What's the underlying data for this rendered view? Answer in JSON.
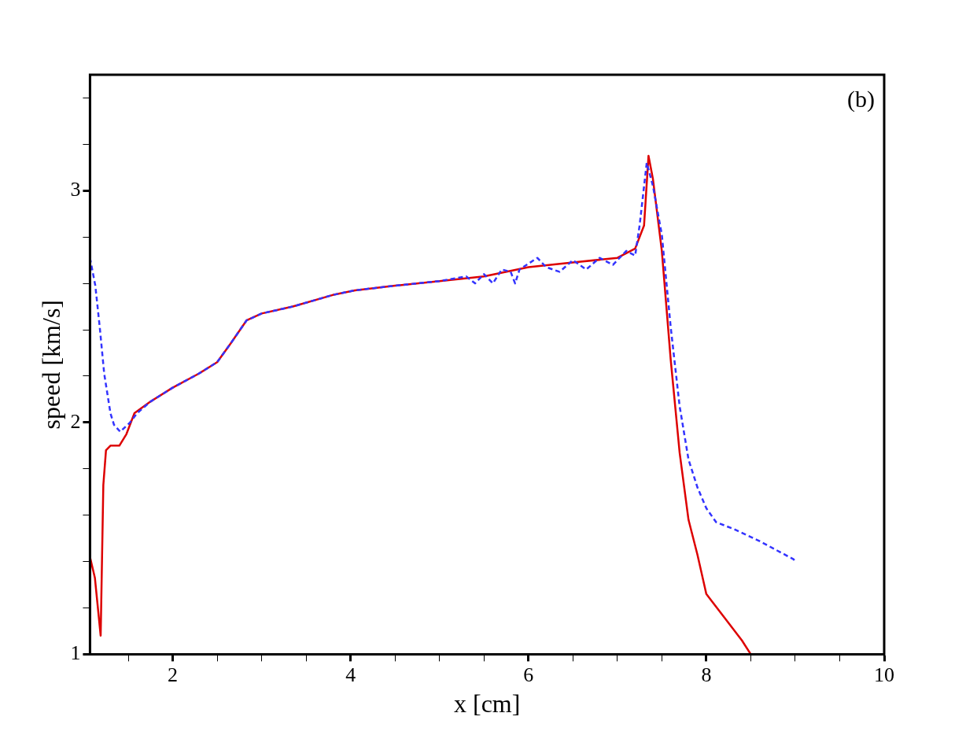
{
  "chart_data": {
    "type": "line",
    "xlabel": "x [cm]",
    "ylabel": "speed [km/s]",
    "annotations": [
      "(b)"
    ],
    "xlim": [
      1.07,
      10
    ],
    "ylim": [
      1,
      3.5
    ],
    "xticks": [
      {
        "value": 1.5,
        "label": null
      },
      2,
      {
        "value": 2.5,
        "label": null
      },
      {
        "value": 3,
        "label": null
      },
      {
        "value": 3.5,
        "label": null
      },
      4,
      {
        "value": 4.5,
        "label": null
      },
      {
        "value": 5,
        "label": null
      },
      {
        "value": 5.5,
        "label": null
      },
      6,
      {
        "value": 6.5,
        "label": null
      },
      {
        "value": 7,
        "label": null
      },
      {
        "value": 7.5,
        "label": null
      },
      8,
      {
        "value": 8.5,
        "label": null
      },
      {
        "value": 9,
        "label": null
      },
      {
        "value": 9.5,
        "label": null
      },
      10
    ],
    "yticks": [
      1,
      {
        "value": 1.2,
        "label": null
      },
      {
        "value": 1.4,
        "label": null
      },
      {
        "value": 1.6,
        "label": null
      },
      {
        "value": 1.8,
        "label": null
      },
      2,
      {
        "value": 2.2,
        "label": null
      },
      {
        "value": 2.4,
        "label": null
      },
      {
        "value": 2.6,
        "label": null
      },
      {
        "value": 2.8,
        "label": null
      },
      3,
      {
        "value": 3.2,
        "label": null
      },
      {
        "value": 3.4,
        "label": null
      }
    ],
    "grid": false,
    "legend": false,
    "marker": "none",
    "series": [
      {
        "color": "#3333ff",
        "line_style": "dashed",
        "x": [
          1.07,
          1.13,
          1.18,
          1.23,
          1.3,
          1.34,
          1.41,
          1.52,
          1.6,
          1.75,
          2,
          2.29,
          2.5,
          2.65,
          2.83,
          3,
          3.35,
          3.8,
          4.05,
          4.5,
          5,
          5.3,
          5.4,
          5.5,
          5.6,
          5.7,
          5.8,
          5.85,
          5.9,
          6.1,
          6.2,
          6.35,
          6.5,
          6.65,
          6.8,
          6.95,
          7.1,
          7.2,
          7.25,
          7.33,
          7.4,
          7.5,
          7.6,
          7.7,
          7.8,
          7.9,
          8,
          8.11,
          8.31,
          8.59,
          8.98,
          9
        ],
        "values": [
          2.71,
          2.59,
          2.41,
          2.21,
          2.04,
          1.99,
          1.96,
          2,
          2.04,
          2.09,
          2.15,
          2.21,
          2.26,
          2.34,
          2.44,
          2.47,
          2.5,
          2.55,
          2.57,
          2.59,
          2.61,
          2.63,
          2.6,
          2.64,
          2.6,
          2.66,
          2.65,
          2.6,
          2.66,
          2.71,
          2.67,
          2.65,
          2.7,
          2.66,
          2.71,
          2.68,
          2.74,
          2.72,
          2.85,
          3.12,
          3.02,
          2.81,
          2.41,
          2.07,
          1.84,
          1.72,
          1.63,
          1.57,
          1.54,
          1.49,
          1.41,
          1.4
        ]
      },
      {
        "color": "#dd0000",
        "line_style": "solid",
        "x": [
          1.07,
          1.125,
          1.19,
          1.22,
          1.25,
          1.3,
          1.4,
          1.48,
          1.57,
          1.75,
          2,
          2.29,
          2.5,
          2.65,
          2.83,
          3,
          3.35,
          3.8,
          4.05,
          4.5,
          5,
          5.5,
          6,
          6.5,
          7,
          7.2,
          7.3,
          7.35,
          7.4,
          7.5,
          7.6,
          7.7,
          7.8,
          7.9,
          8,
          8.2,
          8.4,
          8.5
        ],
        "values": [
          1.42,
          1.33,
          1.08,
          1.73,
          1.88,
          1.9,
          1.9,
          1.95,
          2.04,
          2.09,
          2.15,
          2.21,
          2.26,
          2.34,
          2.44,
          2.47,
          2.5,
          2.55,
          2.57,
          2.59,
          2.61,
          2.63,
          2.67,
          2.69,
          2.71,
          2.75,
          2.85,
          3.15,
          3.05,
          2.74,
          2.27,
          1.87,
          1.58,
          1.43,
          1.26,
          1.16,
          1.06,
          1
        ]
      }
    ]
  }
}
